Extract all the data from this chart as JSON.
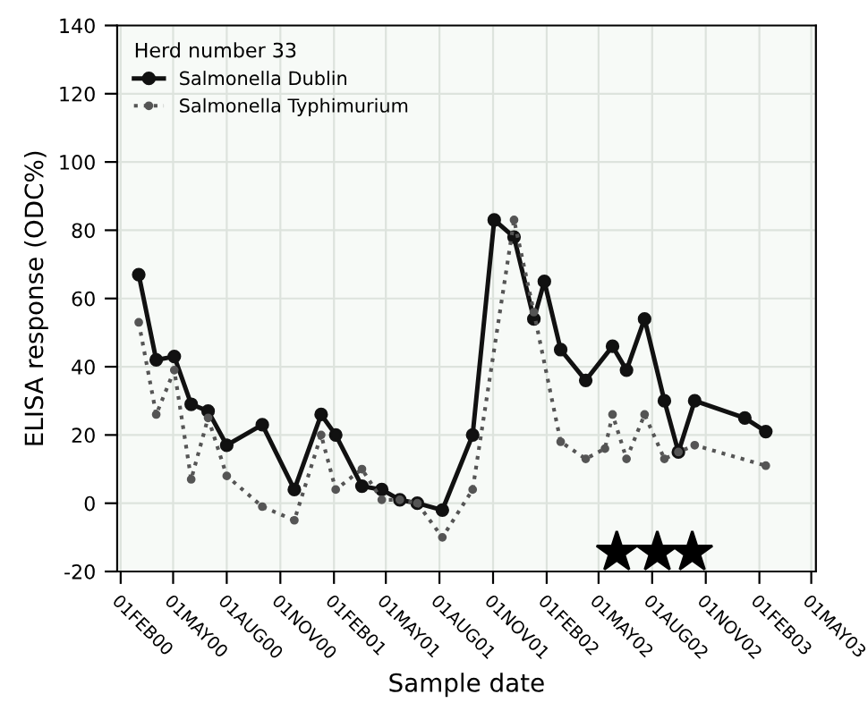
{
  "chart_data": {
    "type": "line",
    "xlabel": "Sample date",
    "ylabel": "ELISA response (ODC%)",
    "legend_title": "Herd number 33",
    "legend": "top left",
    "grid": true,
    "marker": "circle",
    "xlim": [
      "2000-01-26",
      "2003-05-09"
    ],
    "xticks": [
      {
        "value": "2000-02-01",
        "label": "01FEB00"
      },
      {
        "value": "2000-05-01",
        "label": "01MAY00"
      },
      {
        "value": "2000-08-01",
        "label": "01AUG00"
      },
      {
        "value": "2000-11-01",
        "label": "01NOV00"
      },
      {
        "value": "2001-02-01",
        "label": "01FEB01"
      },
      {
        "value": "2001-05-01",
        "label": "01MAY01"
      },
      {
        "value": "2001-08-01",
        "label": "01AUG01"
      },
      {
        "value": "2001-11-01",
        "label": "01NOV01"
      },
      {
        "value": "2002-02-01",
        "label": "01FEB02"
      },
      {
        "value": "2002-05-01",
        "label": "01MAY02"
      },
      {
        "value": "2002-08-01",
        "label": "01AUG02"
      },
      {
        "value": "2002-11-01",
        "label": "01NOV02"
      },
      {
        "value": "2003-02-01",
        "label": "01FEB03"
      },
      {
        "value": "2003-05-01",
        "label": "01MAY03"
      }
    ],
    "ylim": [
      -20,
      140
    ],
    "yticks": [
      -20,
      0,
      20,
      40,
      60,
      80,
      100,
      120,
      140
    ],
    "series": [
      {
        "name": "Salmonella Dublin",
        "color": "#111111",
        "line_style": "solid",
        "x": [
          "2000-03-03",
          "2000-04-02",
          "2000-05-03",
          "2000-06-01",
          "2000-06-30",
          "2000-08-01",
          "2000-10-01",
          "2000-11-25",
          "2001-01-10",
          "2001-02-04",
          "2001-03-21",
          "2001-04-24",
          "2001-05-25",
          "2001-06-24",
          "2001-08-06",
          "2001-09-27",
          "2001-11-03",
          "2001-12-07",
          "2002-01-10",
          "2002-01-28",
          "2002-02-25",
          "2002-04-09",
          "2002-05-25",
          "2002-06-18",
          "2002-07-19",
          "2002-08-22",
          "2002-09-15",
          "2002-10-13",
          "2003-01-07",
          "2003-02-12"
        ],
        "values": [
          67,
          42,
          43,
          29,
          27,
          17,
          23,
          4,
          26,
          20,
          5,
          4,
          1,
          0,
          -2,
          20,
          83,
          78,
          54,
          65,
          45,
          36,
          46,
          39,
          54,
          30,
          15,
          30,
          25,
          21
        ]
      },
      {
        "name": "Salmonella Typhimurium",
        "color": "#555555",
        "line_style": "dotted",
        "x": [
          "2000-03-03",
          "2000-04-02",
          "2000-05-03",
          "2000-06-01",
          "2000-06-30",
          "2000-08-01",
          "2000-10-01",
          "2000-11-25",
          "2001-01-10",
          "2001-02-04",
          "2001-03-21",
          "2001-04-24",
          "2001-05-25",
          "2001-06-24",
          "2001-08-06",
          "2001-09-27",
          "2001-12-07",
          "2002-01-10",
          "2002-02-25",
          "2002-04-09",
          "2002-05-12",
          "2002-05-25",
          "2002-06-18",
          "2002-07-19",
          "2002-08-22",
          "2002-09-15",
          "2002-10-13",
          "2003-02-12"
        ],
        "values": [
          53,
          26,
          39,
          7,
          25,
          8,
          -1,
          -5,
          20,
          4,
          10,
          1,
          1,
          0,
          -10,
          4,
          83,
          56,
          18,
          13,
          16,
          26,
          13,
          26,
          13,
          15,
          17,
          11
        ]
      }
    ]
  }
}
